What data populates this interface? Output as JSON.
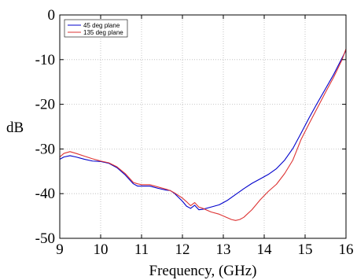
{
  "chart_data": {
    "type": "line",
    "title": "",
    "xlabel": "Frequency, (GHz)",
    "ylabel": "dB",
    "xlim": [
      9,
      16
    ],
    "ylim": [
      -50,
      0
    ],
    "xticks": [
      9,
      10,
      11,
      12,
      13,
      14,
      15,
      16
    ],
    "yticks": [
      0,
      -10,
      -20,
      -30,
      -40,
      -50
    ],
    "xtick_labels": [
      "9",
      "10",
      "11",
      "12",
      "13",
      "14",
      "15",
      "16"
    ],
    "ytick_labels": [
      "0",
      "-10",
      "-20",
      "-30",
      "-40",
      "-50"
    ],
    "grid": true,
    "legend_position": "top-left",
    "series": [
      {
        "name": "45 deg plane",
        "color": "#0000cc",
        "x": [
          9.0,
          9.1,
          9.25,
          9.4,
          9.6,
          9.8,
          10.0,
          10.2,
          10.4,
          10.6,
          10.8,
          10.9,
          11.0,
          11.2,
          11.4,
          11.6,
          11.7,
          11.8,
          11.9,
          12.0,
          12.1,
          12.2,
          12.3,
          12.4,
          12.5,
          12.7,
          12.9,
          13.1,
          13.3,
          13.5,
          13.7,
          13.9,
          14.1,
          14.3,
          14.5,
          14.7,
          14.9,
          15.1,
          15.3,
          15.5,
          15.7,
          15.9,
          16.0
        ],
        "y": [
          -32.3,
          -31.8,
          -31.5,
          -31.8,
          -32.3,
          -32.7,
          -32.8,
          -33.2,
          -34.2,
          -35.8,
          -37.8,
          -38.3,
          -38.3,
          -38.3,
          -38.8,
          -39.2,
          -39.3,
          -39.9,
          -40.8,
          -41.7,
          -42.8,
          -43.3,
          -42.6,
          -43.6,
          -43.5,
          -43.0,
          -42.5,
          -41.5,
          -40.2,
          -38.9,
          -37.7,
          -36.7,
          -35.7,
          -34.4,
          -32.5,
          -29.9,
          -26.5,
          -23.0,
          -19.7,
          -16.5,
          -13.3,
          -9.7,
          -7.9
        ]
      },
      {
        "name": "135 deg plane",
        "color": "#dd3333",
        "x": [
          9.0,
          9.1,
          9.25,
          9.4,
          9.6,
          9.8,
          10.0,
          10.2,
          10.4,
          10.6,
          10.8,
          10.9,
          11.0,
          11.2,
          11.4,
          11.6,
          11.7,
          11.8,
          11.9,
          12.0,
          12.1,
          12.2,
          12.3,
          12.4,
          12.5,
          12.7,
          12.9,
          13.1,
          13.2,
          13.3,
          13.4,
          13.5,
          13.7,
          13.9,
          14.1,
          14.3,
          14.5,
          14.7,
          14.9,
          15.1,
          15.3,
          15.5,
          15.7,
          15.9,
          16.0
        ],
        "y": [
          -31.8,
          -31.0,
          -30.6,
          -31.0,
          -31.6,
          -32.2,
          -32.7,
          -33.1,
          -34.0,
          -35.5,
          -37.5,
          -37.8,
          -38.0,
          -38.0,
          -38.5,
          -39.0,
          -39.3,
          -39.8,
          -40.4,
          -41.0,
          -41.8,
          -42.7,
          -42.0,
          -43.0,
          -43.3,
          -44.1,
          -44.6,
          -45.4,
          -45.8,
          -46.0,
          -45.8,
          -45.3,
          -43.6,
          -41.4,
          -39.5,
          -37.9,
          -35.5,
          -32.5,
          -27.9,
          -24.3,
          -20.8,
          -17.3,
          -13.9,
          -10.1,
          -7.6
        ]
      }
    ]
  }
}
